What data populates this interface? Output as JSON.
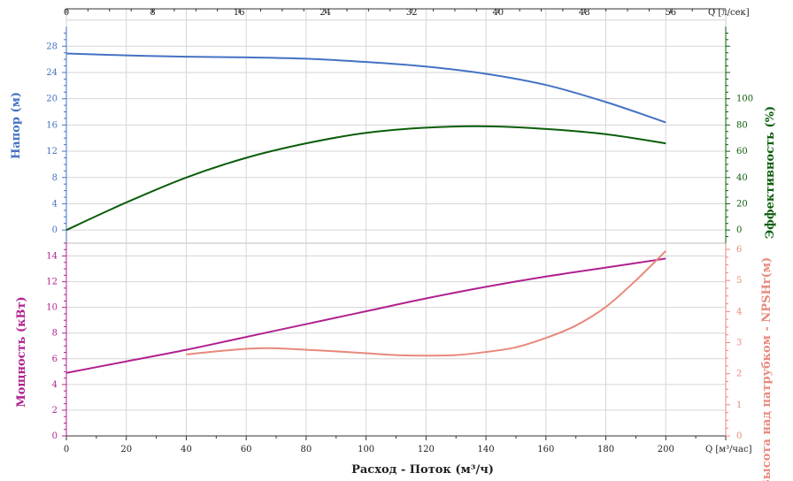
{
  "chart_data": {
    "type": "line",
    "x_bottom": {
      "label": "Расход - Поток (м³/ч)",
      "unit": "Q [м³/час]",
      "range": [
        0,
        220
      ],
      "ticks": [
        "0",
        "20",
        "40",
        "60",
        "80",
        "100",
        "120",
        "140",
        "160",
        "180",
        "200"
      ]
    },
    "x_top": {
      "unit": "Q [л/сек]",
      "range": [
        0,
        61.1
      ],
      "ticks": [
        "0",
        "8",
        "16",
        "24",
        "32",
        "40",
        "48",
        "56"
      ]
    },
    "top_panel": {
      "left_axis": {
        "label": "Напор (м)",
        "color": "#4472c4",
        "range": [
          -2,
          31
        ],
        "ticks": [
          "0",
          "4",
          "8",
          "12",
          "16",
          "20",
          "24",
          "28"
        ]
      },
      "right_axis": {
        "label": "Эффективность (%)",
        "color": "#0b5d0b",
        "range": [
          -10,
          155
        ],
        "ticks": [
          "0",
          "20",
          "40",
          "60",
          "80",
          "100"
        ]
      },
      "series": [
        {
          "key": "head",
          "color": "#4472c4",
          "axis": "left",
          "x": [
            0,
            20,
            40,
            60,
            80,
            100,
            120,
            140,
            160,
            180,
            200
          ],
          "y": [
            26.9,
            26.6,
            26.4,
            26.3,
            26.1,
            25.6,
            24.9,
            23.8,
            22.1,
            19.5,
            16.4
          ]
        },
        {
          "key": "efficiency",
          "color": "#0b5d0b",
          "axis": "right",
          "x": [
            0,
            20,
            40,
            60,
            80,
            100,
            120,
            140,
            160,
            180,
            200
          ],
          "y": [
            0,
            21,
            40,
            55,
            66,
            74,
            78,
            79,
            77,
            73,
            66
          ]
        }
      ]
    },
    "bottom_panel": {
      "left_axis": {
        "label": "Мощность (кВт)",
        "color": "#b0218f",
        "range": [
          0,
          15
        ],
        "ticks": [
          "0",
          "2",
          "4",
          "6",
          "8",
          "10",
          "12",
          "14"
        ]
      },
      "right_axis": {
        "label": "Высота над патрубком - NPSHr(м)",
        "color": "#e8897c",
        "range": [
          0,
          6.2
        ],
        "ticks": [
          "0",
          "1",
          "2",
          "3",
          "4",
          "5",
          "6"
        ]
      },
      "series": [
        {
          "key": "power",
          "color": "#b0218f",
          "axis": "left",
          "x": [
            0,
            20,
            40,
            60,
            80,
            100,
            120,
            140,
            160,
            180,
            200
          ],
          "y": [
            4.9,
            5.8,
            6.7,
            7.7,
            8.7,
            9.7,
            10.7,
            11.6,
            12.4,
            13.1,
            13.8
          ]
        },
        {
          "key": "npshr",
          "color": "#e8897c",
          "axis": "right",
          "x": [
            40,
            50,
            60,
            65,
            70,
            80,
            90,
            100,
            110,
            120,
            130,
            140,
            150,
            160,
            170,
            180,
            190,
            200
          ],
          "y": [
            2.62,
            2.72,
            2.8,
            2.82,
            2.82,
            2.77,
            2.72,
            2.66,
            2.6,
            2.58,
            2.6,
            2.7,
            2.85,
            3.15,
            3.55,
            4.15,
            5.0,
            5.95
          ]
        }
      ]
    },
    "grid": true
  }
}
